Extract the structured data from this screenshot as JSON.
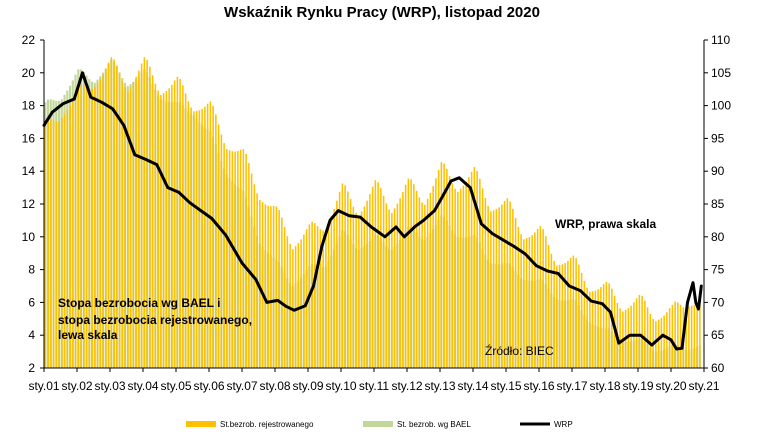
{
  "chart_data": {
    "type": "bar+line",
    "title": "Wskaźnik Rynku Pracy (WRP), listopad 2020",
    "x_ticks": [
      "sty.01",
      "sty.02",
      "sty.03",
      "sty.04",
      "sty.05",
      "sty.06",
      "sty.07",
      "sty.08",
      "sty.09",
      "sty.10",
      "sty.11",
      "sty.12",
      "sty.13",
      "sty.14",
      "sty.15",
      "sty.16",
      "sty.17",
      "sty.18",
      "sty.19",
      "sty.20",
      "sty.21"
    ],
    "x_range": [
      "2001-01",
      "2021-01"
    ],
    "y_left": {
      "ylim": [
        2,
        22
      ],
      "ticks": [
        2,
        4,
        6,
        8,
        10,
        12,
        14,
        16,
        18,
        20,
        22
      ]
    },
    "y_right": {
      "ylim": [
        60,
        110
      ],
      "ticks": [
        60,
        65,
        70,
        75,
        80,
        85,
        90,
        95,
        100,
        105,
        110
      ]
    },
    "grid": false,
    "legend_position": "bottom",
    "series": [
      {
        "name": "St.bezrob. rejestrowanego",
        "axis": "left",
        "kind": "bar",
        "color": "#FFC000",
        "points": [
          [
            "2001-01",
            16.5
          ],
          [
            "2001-07",
            17.6
          ],
          [
            "2002-01",
            18.7
          ],
          [
            "2002-07",
            19.5
          ],
          [
            "2003-01",
            20.6
          ],
          [
            "2003-07",
            19.2
          ],
          [
            "2004-01",
            20.6
          ],
          [
            "2004-07",
            19.0
          ],
          [
            "2005-01",
            19.4
          ],
          [
            "2005-07",
            18.0
          ],
          [
            "2006-01",
            17.9
          ],
          [
            "2006-07",
            15.7
          ],
          [
            "2007-01",
            15.0
          ],
          [
            "2007-07",
            12.6
          ],
          [
            "2008-01",
            11.5
          ],
          [
            "2008-07",
            9.6
          ],
          [
            "2009-01",
            10.4
          ],
          [
            "2009-07",
            10.8
          ],
          [
            "2010-01",
            12.9
          ],
          [
            "2010-07",
            11.6
          ],
          [
            "2011-01",
            13.1
          ],
          [
            "2011-07",
            11.8
          ],
          [
            "2012-01",
            13.2
          ],
          [
            "2012-07",
            12.3
          ],
          [
            "2013-01",
            14.2
          ],
          [
            "2013-07",
            13.1
          ],
          [
            "2014-01",
            13.9
          ],
          [
            "2014-07",
            11.9
          ],
          [
            "2015-01",
            12.0
          ],
          [
            "2015-07",
            10.2
          ],
          [
            "2016-01",
            10.3
          ],
          [
            "2016-07",
            8.6
          ],
          [
            "2017-01",
            8.5
          ],
          [
            "2017-07",
            7.0
          ],
          [
            "2018-01",
            6.9
          ],
          [
            "2018-07",
            5.8
          ],
          [
            "2019-01",
            6.1
          ],
          [
            "2019-07",
            5.2
          ],
          [
            "2020-01",
            5.5
          ],
          [
            "2020-07",
            6.1
          ],
          [
            "2020-11",
            6.1
          ]
        ]
      },
      {
        "name": "St. bezrob. wg BAEL",
        "axis": "left",
        "kind": "bar",
        "color": "#C4D79B",
        "points": [
          [
            "2001-01",
            18.0
          ],
          [
            "2001-07",
            18.6
          ],
          [
            "2002-01",
            20.0
          ],
          [
            "2002-07",
            19.6
          ],
          [
            "2003-01",
            20.6
          ],
          [
            "2003-07",
            19.4
          ],
          [
            "2004-01",
            20.0
          ],
          [
            "2004-07",
            18.6
          ],
          [
            "2005-01",
            18.0
          ],
          [
            "2005-07",
            17.6
          ],
          [
            "2006-01",
            16.2
          ],
          [
            "2006-07",
            14.0
          ],
          [
            "2007-01",
            12.6
          ],
          [
            "2007-07",
            9.8
          ],
          [
            "2008-01",
            8.4
          ],
          [
            "2008-07",
            7.2
          ],
          [
            "2009-01",
            8.0
          ],
          [
            "2009-07",
            8.4
          ],
          [
            "2010-01",
            10.2
          ],
          [
            "2010-07",
            9.4
          ],
          [
            "2011-01",
            9.9
          ],
          [
            "2011-07",
            9.4
          ],
          [
            "2012-01",
            10.4
          ],
          [
            "2012-07",
            10.0
          ],
          [
            "2013-01",
            11.1
          ],
          [
            "2013-07",
            10.2
          ],
          [
            "2014-01",
            9.9
          ],
          [
            "2014-07",
            8.6
          ],
          [
            "2015-01",
            8.2
          ],
          [
            "2015-07",
            7.6
          ],
          [
            "2016-01",
            7.2
          ],
          [
            "2016-07",
            6.4
          ],
          [
            "2017-01",
            6.0
          ],
          [
            "2017-07",
            5.0
          ],
          [
            "2018-01",
            4.2
          ],
          [
            "2018-07",
            3.8
          ],
          [
            "2019-01",
            3.6
          ],
          [
            "2019-07",
            3.2
          ],
          [
            "2020-01",
            3.2
          ],
          [
            "2020-07",
            3.3
          ],
          [
            "2020-11",
            3.4
          ]
        ]
      },
      {
        "name": "WRP",
        "axis": "right",
        "kind": "line",
        "color": "#000000",
        "points": [
          [
            "2001-01",
            97.0
          ],
          [
            "2001-04",
            99.0
          ],
          [
            "2001-08",
            100.3
          ],
          [
            "2001-12",
            101.0
          ],
          [
            "2002-03",
            105.0
          ],
          [
            "2002-06",
            101.3
          ],
          [
            "2002-10",
            100.5
          ],
          [
            "2003-02",
            99.5
          ],
          [
            "2003-06",
            97.0
          ],
          [
            "2003-10",
            92.5
          ],
          [
            "2004-02",
            91.8
          ],
          [
            "2004-06",
            91.0
          ],
          [
            "2004-10",
            87.5
          ],
          [
            "2005-02",
            86.8
          ],
          [
            "2005-06",
            85.2
          ],
          [
            "2005-10",
            84.0
          ],
          [
            "2006-02",
            82.8
          ],
          [
            "2006-07",
            80.3
          ],
          [
            "2007-01",
            76.0
          ],
          [
            "2007-06",
            73.5
          ],
          [
            "2007-10",
            70.0
          ],
          [
            "2008-02",
            70.3
          ],
          [
            "2008-05",
            69.4
          ],
          [
            "2008-08",
            68.8
          ],
          [
            "2008-12",
            69.5
          ],
          [
            "2009-03",
            72.5
          ],
          [
            "2009-06",
            78.5
          ],
          [
            "2009-09",
            82.5
          ],
          [
            "2009-12",
            84.0
          ],
          [
            "2010-04",
            83.2
          ],
          [
            "2010-08",
            83.0
          ],
          [
            "2010-12",
            81.5
          ],
          [
            "2011-05",
            80.0
          ],
          [
            "2011-09",
            81.5
          ],
          [
            "2011-12",
            80.0
          ],
          [
            "2012-04",
            81.6
          ],
          [
            "2012-07",
            82.5
          ],
          [
            "2012-11",
            84.0
          ],
          [
            "2013-02",
            86.2
          ],
          [
            "2013-05",
            88.5
          ],
          [
            "2013-08",
            89.0
          ],
          [
            "2013-12",
            87.5
          ],
          [
            "2014-04",
            82.0
          ],
          [
            "2014-08",
            80.5
          ],
          [
            "2014-12",
            79.5
          ],
          [
            "2015-04",
            78.5
          ],
          [
            "2015-08",
            77.4
          ],
          [
            "2015-12",
            75.6
          ],
          [
            "2016-04",
            74.8
          ],
          [
            "2016-08",
            74.4
          ],
          [
            "2016-12",
            72.5
          ],
          [
            "2017-04",
            71.8
          ],
          [
            "2017-08",
            70.2
          ],
          [
            "2017-12",
            69.8
          ],
          [
            "2018-03",
            68.5
          ],
          [
            "2018-06",
            63.8
          ],
          [
            "2018-10",
            65.0
          ],
          [
            "2019-02",
            65.0
          ],
          [
            "2019-06",
            63.5
          ],
          [
            "2019-10",
            65.0
          ],
          [
            "2020-01",
            64.3
          ],
          [
            "2020-03",
            62.9
          ],
          [
            "2020-05",
            63.0
          ],
          [
            "2020-07",
            70.0
          ],
          [
            "2020-09",
            73.0
          ],
          [
            "2020-10",
            70.0
          ],
          [
            "2020-11",
            69.0
          ],
          [
            "2020-12",
            72.5
          ]
        ]
      }
    ],
    "annotations": [
      {
        "text": "WRP, prawa skala",
        "bold": true
      },
      {
        "text": "Stopa bezrobocia wg BAEL i",
        "bold": true
      },
      {
        "text": "stopa bezrobocia rejestrowanego,",
        "bold": true
      },
      {
        "text": "lewa skala",
        "bold": true
      },
      {
        "text": "Źródło: BIEC",
        "bold": false
      }
    ]
  }
}
